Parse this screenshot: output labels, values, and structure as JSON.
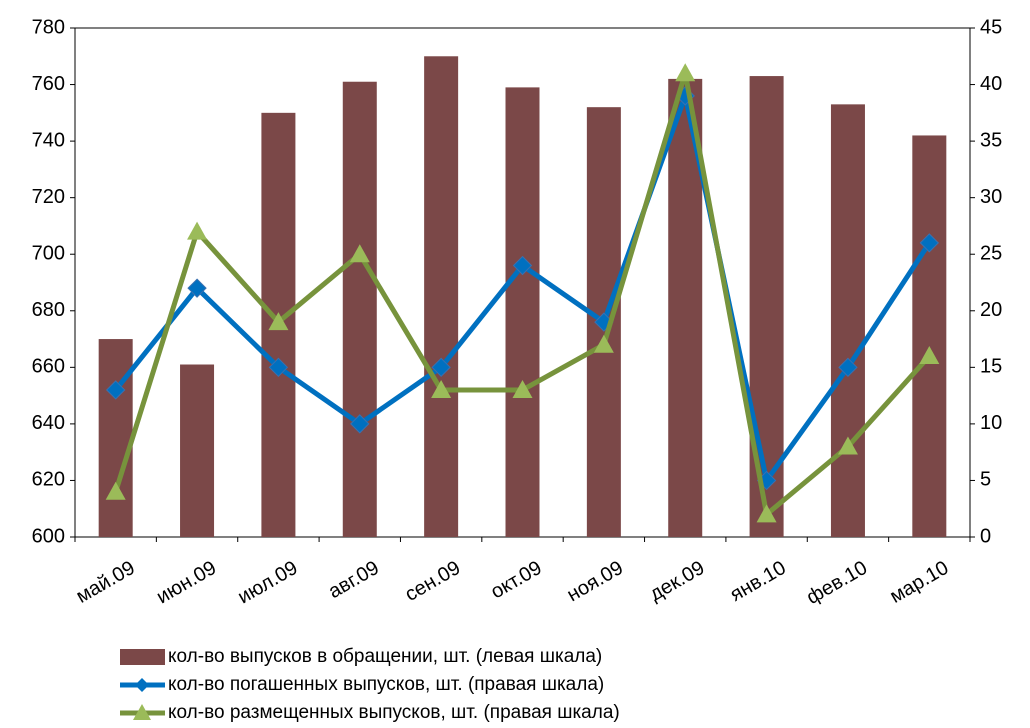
{
  "chart_data": {
    "type": "bar",
    "categories": [
      "май.09",
      "июн.09",
      "июл.09",
      "авг.09",
      "сен.09",
      "окт.09",
      "ноя.09",
      "дек.09",
      "янв.10",
      "фев.10",
      "мар.10"
    ],
    "series": [
      {
        "name": "кол-во выпусков в обращении, шт. (левая шкала)",
        "type": "bar",
        "color": "#7b4848",
        "values": [
          670,
          661,
          750,
          761,
          770,
          759,
          752,
          762,
          763,
          753,
          742
        ]
      },
      {
        "name": "кол-во погашенных выпусков, шт. (правая шкала)",
        "type": "line",
        "axis": "y2",
        "marker": "diamond",
        "color": "#0070c0",
        "values": [
          13,
          22,
          15,
          10,
          15,
          24,
          19,
          39,
          5,
          15,
          26
        ]
      },
      {
        "name": "кол-во размещенных выпусков, шт. (правая шкала)",
        "type": "line",
        "axis": "y2",
        "marker": "triangle",
        "color": "#77933c",
        "marker_color": "#9bbb59",
        "values": [
          4,
          27,
          19,
          25,
          13,
          13,
          17,
          41,
          2,
          8,
          16
        ]
      }
    ],
    "ylim": [
      600,
      780
    ],
    "yticks": [
      600,
      620,
      640,
      660,
      680,
      700,
      720,
      740,
      760,
      780
    ],
    "y2lim": [
      0,
      45
    ],
    "y2ticks": [
      0,
      5,
      10,
      15,
      20,
      25,
      30,
      35,
      40,
      45
    ],
    "grid": false
  }
}
